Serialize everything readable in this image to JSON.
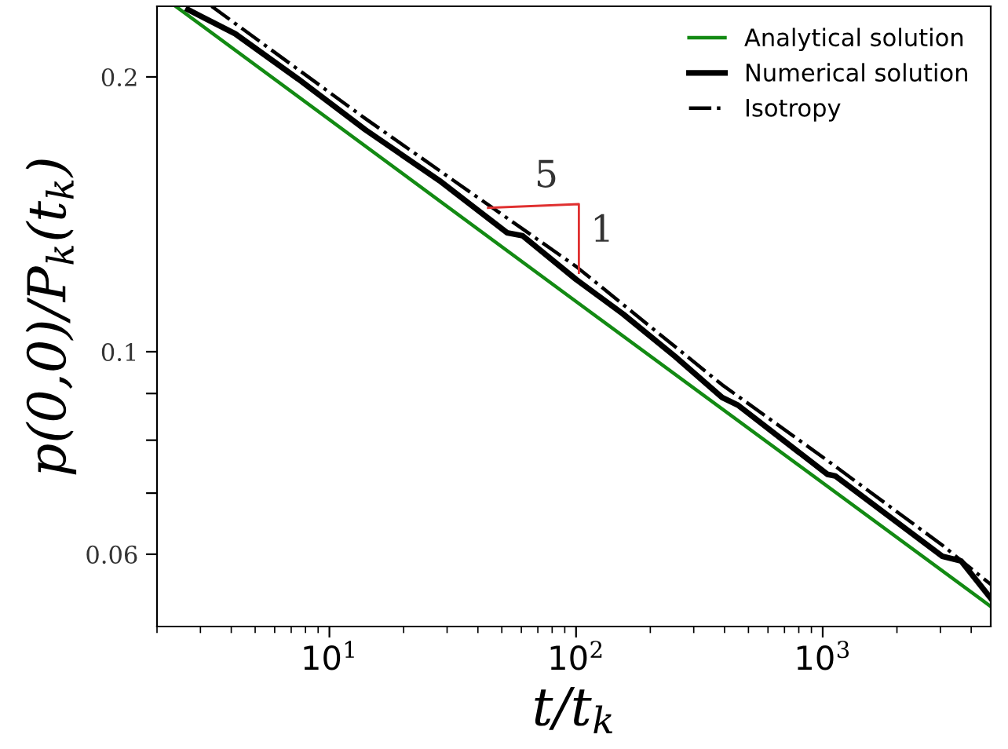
{
  "chart_data": {
    "type": "line",
    "xlabel": "t/t$_{k}$",
    "ylabel": "p(0,0)/P$_{k}$(t$_{k}$)",
    "log": "xy",
    "grid": false,
    "legend": "top right",
    "xlim": [
      2.0,
      4800
    ],
    "ylim": [
      0.05,
      0.239
    ],
    "xticks": [
      {
        "value": 10,
        "label": "10$^{1}$"
      },
      {
        "value": 100,
        "label": "10$^{2}$"
      },
      {
        "value": 1000,
        "label": "10$^{3}$"
      }
    ],
    "yticks": [
      0.06,
      {
        "value": 0.07,
        "label": null
      },
      {
        "value": 0.08,
        "label": null
      },
      {
        "value": 0.09,
        "label": null
      },
      0.1,
      0.2
    ],
    "annotations": [
      "5",
      {
        "text": "1",
        "x": 100,
        "y": 0.12
      }
    ],
    "series": [
      {
        "name": "Analytical solution",
        "color": "#138a13",
        "line_style": "solid",
        "x": [
          2.38,
          100,
          4800
        ],
        "values": [
          0.239,
          0.1135,
          0.0526
        ]
      },
      {
        "name": "Numerical solution",
        "color": "#000000",
        "line_style": "solid",
        "x": [
          2.67,
          4.15,
          7.46,
          14.0,
          27.9,
          52.5,
          60.7,
          100,
          155,
          252,
          391,
          453,
          1045,
          1124,
          3050,
          3640,
          4800
        ],
        "values": [
          0.237,
          0.223,
          0.199,
          0.175,
          0.154,
          0.135,
          0.134,
          0.12,
          0.11,
          0.0988,
          0.0891,
          0.0874,
          0.0734,
          0.0731,
          0.0597,
          0.059,
          0.0537
        ]
      },
      {
        "name": "Isotropy",
        "color": "#000000",
        "line_style": "dashdot",
        "x": [
          3.33,
          14.0,
          100,
          391,
          1045,
          3050,
          4800
        ],
        "values": [
          0.239,
          0.18,
          0.124,
          0.092,
          0.076,
          0.0614,
          0.0556
        ]
      }
    ]
  }
}
